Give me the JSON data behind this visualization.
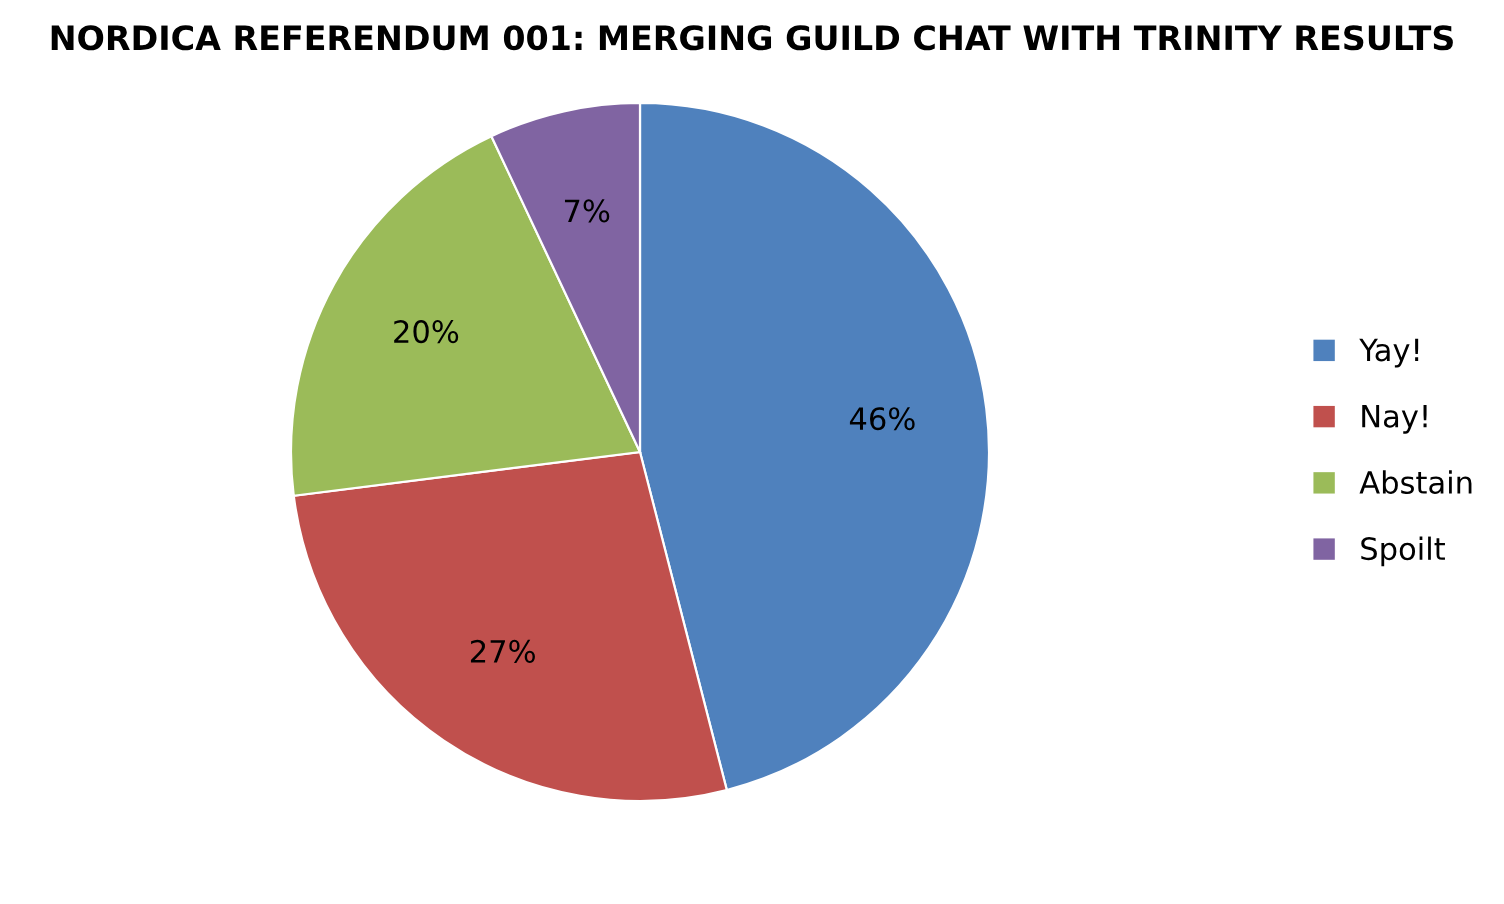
{
  "chart_data": {
    "type": "pie",
    "title": "NORDICA REFERENDUM 001: MERGING GUILD CHAT WITH TRINITY RESULTS",
    "categories": [
      "Yay!",
      "Nay!",
      "Abstain",
      "Spoilt"
    ],
    "values": [
      46,
      27,
      20,
      7
    ],
    "colors": [
      "#4f81bd",
      "#c0504d",
      "#9bbb59",
      "#8064a2"
    ],
    "value_labels": [
      "46%",
      "27%",
      "20%",
      "7%"
    ],
    "legend": "right"
  }
}
